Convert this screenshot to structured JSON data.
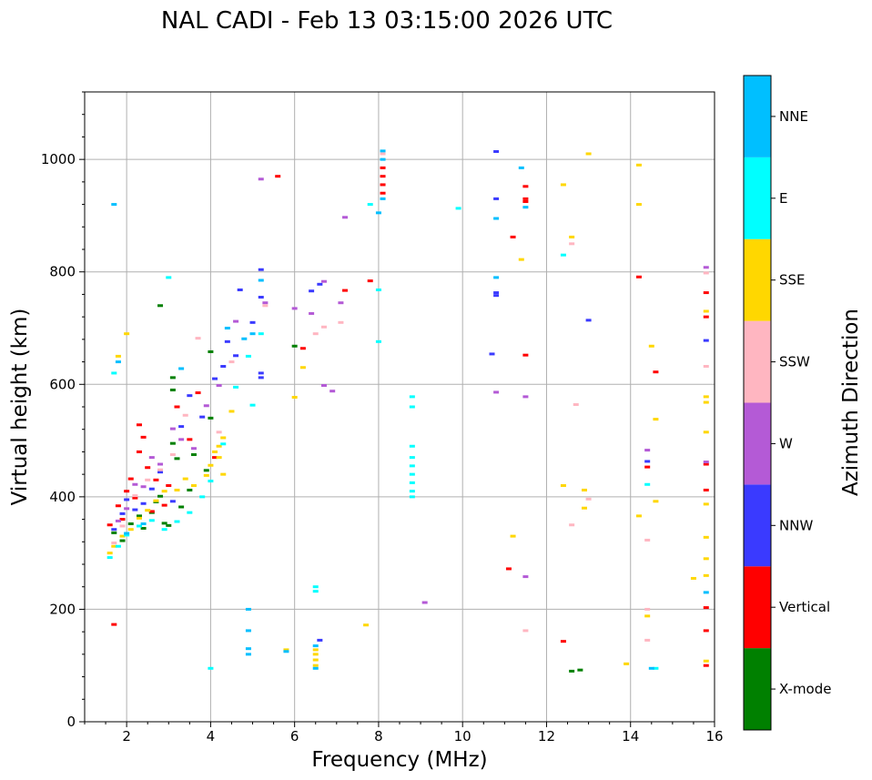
{
  "chart_data": {
    "type": "scatter",
    "title": "NAL CADI - Feb 13 03:15:00 2026 UTC",
    "xlabel": "Frequency (MHz)",
    "ylabel": "Virtual height (km)",
    "xlim": [
      1,
      16
    ],
    "ylim": [
      0,
      1120
    ],
    "xticks": [
      2,
      4,
      6,
      8,
      10,
      12,
      14,
      16
    ],
    "xtick_labels": [
      "2",
      "4",
      "6",
      "8",
      "10",
      "12",
      "14",
      "16"
    ],
    "yticks": [
      0,
      200,
      400,
      600,
      800,
      1000
    ],
    "ytick_labels": [
      "0",
      "200",
      "400",
      "600",
      "800",
      "1000"
    ],
    "grid": true,
    "colorbar": {
      "label": "Azimuth Direction",
      "categories": [
        "X-mode",
        "Vertical",
        "NNW",
        "W",
        "SSW",
        "SSE",
        "E",
        "NNE"
      ],
      "colors": [
        "#008000",
        "#ff0000",
        "#3a3aff",
        "#b45ad6",
        "#ffb6c1",
        "#ffd700",
        "#00ffff",
        "#00bfff"
      ]
    },
    "series": [
      {
        "name": "X-mode",
        "points": [
          [
            1.7,
            336
          ],
          [
            1.9,
            322
          ],
          [
            2.1,
            352
          ],
          [
            2.3,
            366
          ],
          [
            2.4,
            344
          ],
          [
            2.6,
            372
          ],
          [
            2.7,
            391
          ],
          [
            2.8,
            401
          ],
          [
            2.9,
            353
          ],
          [
            3.0,
            349
          ],
          [
            3.1,
            612
          ],
          [
            3.1,
            590
          ],
          [
            3.1,
            495
          ],
          [
            3.2,
            468
          ],
          [
            3.3,
            382
          ],
          [
            3.5,
            412
          ],
          [
            3.6,
            475
          ],
          [
            3.9,
            447
          ],
          [
            4.0,
            658
          ],
          [
            4.0,
            540
          ],
          [
            2.8,
            740
          ],
          [
            6.0,
            668
          ],
          [
            12.8,
            92
          ],
          [
            12.6,
            90
          ]
        ]
      },
      {
        "name": "Vertical",
        "points": [
          [
            1.6,
            350
          ],
          [
            1.8,
            384
          ],
          [
            1.9,
            360
          ],
          [
            2.0,
            410
          ],
          [
            2.1,
            432
          ],
          [
            2.2,
            398
          ],
          [
            2.3,
            480
          ],
          [
            2.3,
            528
          ],
          [
            2.4,
            506
          ],
          [
            2.5,
            452
          ],
          [
            2.6,
            374
          ],
          [
            2.7,
            430
          ],
          [
            2.9,
            385
          ],
          [
            3.0,
            420
          ],
          [
            3.2,
            560
          ],
          [
            3.5,
            502
          ],
          [
            3.7,
            585
          ],
          [
            4.1,
            470
          ],
          [
            1.7,
            173
          ],
          [
            5.6,
            970
          ],
          [
            7.2,
            767
          ],
          [
            7.8,
            784
          ],
          [
            8.1,
            985
          ],
          [
            8.1,
            970
          ],
          [
            8.1,
            955
          ],
          [
            8.1,
            940
          ],
          [
            6.2,
            664
          ],
          [
            11.2,
            862
          ],
          [
            11.5,
            952
          ],
          [
            11.5,
            925
          ],
          [
            11.5,
            930
          ],
          [
            11.5,
            652
          ],
          [
            11.1,
            272
          ],
          [
            14.2,
            791
          ],
          [
            14.6,
            622
          ],
          [
            14.4,
            453
          ],
          [
            12.4,
            143
          ],
          [
            15.8,
            763
          ],
          [
            15.8,
            720
          ],
          [
            15.8,
            412
          ],
          [
            15.8,
            458
          ],
          [
            15.8,
            203
          ],
          [
            15.8,
            162
          ],
          [
            15.8,
            100
          ]
        ]
      },
      {
        "name": "NNW",
        "points": [
          [
            1.7,
            342
          ],
          [
            1.9,
            370
          ],
          [
            2.0,
            395
          ],
          [
            2.2,
            377
          ],
          [
            2.4,
            388
          ],
          [
            2.6,
            414
          ],
          [
            2.8,
            444
          ],
          [
            3.1,
            392
          ],
          [
            3.3,
            525
          ],
          [
            3.5,
            580
          ],
          [
            3.8,
            542
          ],
          [
            4.1,
            610
          ],
          [
            4.3,
            632
          ],
          [
            4.4,
            676
          ],
          [
            4.6,
            651
          ],
          [
            4.7,
            768
          ],
          [
            5.0,
            710
          ],
          [
            5.2,
            612
          ],
          [
            5.2,
            620
          ],
          [
            5.2,
            755
          ],
          [
            5.2,
            804
          ],
          [
            6.6,
            778
          ],
          [
            6.4,
            766
          ],
          [
            6.6,
            145
          ],
          [
            10.8,
            1014
          ],
          [
            10.8,
            930
          ],
          [
            10.8,
            763
          ],
          [
            10.8,
            758
          ],
          [
            10.7,
            654
          ],
          [
            13.0,
            714
          ],
          [
            15.8,
            678
          ],
          [
            14.4,
            463
          ]
        ]
      },
      {
        "name": "W",
        "points": [
          [
            1.8,
            357
          ],
          [
            2.0,
            379
          ],
          [
            2.2,
            422
          ],
          [
            2.4,
            418
          ],
          [
            2.6,
            470
          ],
          [
            2.8,
            458
          ],
          [
            3.1,
            521
          ],
          [
            3.3,
            502
          ],
          [
            3.6,
            486
          ],
          [
            3.9,
            562
          ],
          [
            4.2,
            598
          ],
          [
            4.6,
            712
          ],
          [
            5.3,
            745
          ],
          [
            5.2,
            965
          ],
          [
            6.0,
            735
          ],
          [
            6.4,
            726
          ],
          [
            6.7,
            783
          ],
          [
            6.7,
            598
          ],
          [
            6.9,
            588
          ],
          [
            7.1,
            745
          ],
          [
            7.2,
            897
          ],
          [
            10.8,
            586
          ],
          [
            11.5,
            578
          ],
          [
            11.5,
            258
          ],
          [
            9.1,
            212
          ],
          [
            14.4,
            483
          ],
          [
            15.8,
            808
          ],
          [
            15.8,
            462
          ]
        ]
      },
      {
        "name": "SSW",
        "points": [
          [
            1.7,
            318
          ],
          [
            1.9,
            348
          ],
          [
            2.2,
            402
          ],
          [
            2.5,
            430
          ],
          [
            2.8,
            448
          ],
          [
            3.1,
            475
          ],
          [
            3.4,
            545
          ],
          [
            3.7,
            682
          ],
          [
            4.2,
            515
          ],
          [
            4.5,
            640
          ],
          [
            5.3,
            740
          ],
          [
            6.5,
            690
          ],
          [
            6.7,
            702
          ],
          [
            7.1,
            710
          ],
          [
            8.1,
            1010
          ],
          [
            12.6,
            850
          ],
          [
            12.7,
            564
          ],
          [
            13.0,
            396
          ],
          [
            12.6,
            350
          ],
          [
            14.4,
            200
          ],
          [
            14.4,
            323
          ],
          [
            14.4,
            145
          ],
          [
            15.8,
            632
          ],
          [
            15.8,
            798
          ],
          [
            11.5,
            162
          ]
        ]
      },
      {
        "name": "SSE",
        "points": [
          [
            1.6,
            300
          ],
          [
            1.7,
            312
          ],
          [
            1.9,
            330
          ],
          [
            2.1,
            342
          ],
          [
            2.3,
            362
          ],
          [
            2.5,
            376
          ],
          [
            2.7,
            393
          ],
          [
            2.9,
            410
          ],
          [
            3.2,
            412
          ],
          [
            3.4,
            432
          ],
          [
            3.6,
            420
          ],
          [
            3.9,
            438
          ],
          [
            4.0,
            456
          ],
          [
            4.1,
            480
          ],
          [
            4.2,
            490
          ],
          [
            4.2,
            470
          ],
          [
            4.3,
            505
          ],
          [
            4.3,
            440
          ],
          [
            1.8,
            650
          ],
          [
            2.0,
            690
          ],
          [
            4.5,
            552
          ],
          [
            6.2,
            630
          ],
          [
            6.0,
            577
          ],
          [
            5.8,
            128
          ],
          [
            6.5,
            128
          ],
          [
            6.5,
            120
          ],
          [
            6.5,
            110
          ],
          [
            6.5,
            100
          ],
          [
            7.7,
            172
          ],
          [
            12.4,
            955
          ],
          [
            13.0,
            1010
          ],
          [
            12.6,
            862
          ],
          [
            11.4,
            822
          ],
          [
            12.4,
            420
          ],
          [
            12.9,
            412
          ],
          [
            12.9,
            380
          ],
          [
            11.2,
            330
          ],
          [
            14.2,
            990
          ],
          [
            14.2,
            920
          ],
          [
            14.5,
            668
          ],
          [
            14.6,
            538
          ],
          [
            14.6,
            392
          ],
          [
            14.2,
            366
          ],
          [
            14.4,
            188
          ],
          [
            13.9,
            103
          ],
          [
            15.8,
            730
          ],
          [
            15.8,
            578
          ],
          [
            15.8,
            568
          ],
          [
            15.8,
            515
          ],
          [
            15.8,
            387
          ],
          [
            15.8,
            328
          ],
          [
            15.8,
            290
          ],
          [
            15.8,
            260
          ],
          [
            15.5,
            255
          ],
          [
            15.8,
            108
          ]
        ]
      },
      {
        "name": "E",
        "points": [
          [
            1.6,
            292
          ],
          [
            1.8,
            312
          ],
          [
            2.0,
            332
          ],
          [
            2.3,
            348
          ],
          [
            2.6,
            358
          ],
          [
            2.9,
            342
          ],
          [
            3.2,
            356
          ],
          [
            3.5,
            372
          ],
          [
            3.8,
            400
          ],
          [
            4.0,
            428
          ],
          [
            4.3,
            494
          ],
          [
            3.0,
            790
          ],
          [
            4.6,
            595
          ],
          [
            5.0,
            563
          ],
          [
            4.9,
            650
          ],
          [
            5.2,
            690
          ],
          [
            8.8,
            578
          ],
          [
            8.8,
            560
          ],
          [
            8.8,
            490
          ],
          [
            8.8,
            470
          ],
          [
            8.8,
            455
          ],
          [
            8.8,
            440
          ],
          [
            8.8,
            425
          ],
          [
            8.8,
            410
          ],
          [
            8.8,
            400
          ],
          [
            7.8,
            920
          ],
          [
            8.0,
            676
          ],
          [
            8.0,
            768
          ],
          [
            9.9,
            913
          ],
          [
            12.4,
            830
          ],
          [
            14.6,
            95
          ],
          [
            14.4,
            422
          ],
          [
            6.5,
            240
          ],
          [
            6.5,
            232
          ],
          [
            4.0,
            95
          ],
          [
            1.7,
            620
          ]
        ]
      },
      {
        "name": "NNE",
        "points": [
          [
            1.7,
            920
          ],
          [
            1.8,
            640
          ],
          [
            2.0,
            335
          ],
          [
            2.4,
            352
          ],
          [
            3.3,
            628
          ],
          [
            4.4,
            700
          ],
          [
            4.8,
            681
          ],
          [
            5.2,
            785
          ],
          [
            5.0,
            690
          ],
          [
            4.9,
            200
          ],
          [
            4.9,
            162
          ],
          [
            4.9,
            130
          ],
          [
            4.9,
            120
          ],
          [
            5.8,
            125
          ],
          [
            6.5,
            135
          ],
          [
            6.5,
            95
          ],
          [
            8.1,
            1015
          ],
          [
            8.1,
            1000
          ],
          [
            8.1,
            930
          ],
          [
            8.0,
            905
          ],
          [
            10.8,
            895
          ],
          [
            10.8,
            790
          ],
          [
            11.4,
            985
          ],
          [
            11.5,
            915
          ],
          [
            14.5,
            95
          ],
          [
            15.8,
            230
          ]
        ]
      }
    ]
  }
}
